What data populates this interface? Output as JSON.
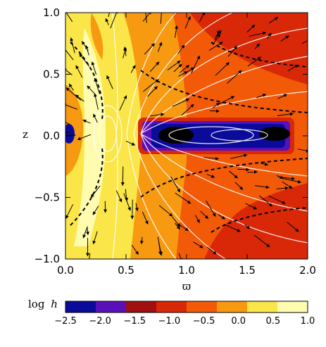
{
  "chart_data": {
    "type": "heatmap",
    "title": "",
    "xlabel": "ϖ",
    "ylabel": "z",
    "xlim": [
      0.0,
      2.0
    ],
    "ylim": [
      -1.0,
      1.0
    ],
    "xticks": [
      "0.0",
      "0.5",
      "1.0",
      "1.5",
      "2.0"
    ],
    "yticks": [
      "1.0",
      "0.5",
      "0.0",
      "−0.5",
      "−1.0"
    ],
    "xtick_values": [
      0.0,
      0.5,
      1.0,
      1.5,
      2.0
    ],
    "ytick_values": [
      1.0,
      0.5,
      0.0,
      -0.5,
      -1.0
    ],
    "colorbar": {
      "label_prefix": "log",
      "label_var": "h",
      "levels": [
        -2.5,
        -2.0,
        -1.5,
        -1.0,
        -0.5,
        0.0,
        0.5,
        1.0
      ],
      "tick_labels": [
        "−2.5",
        "−2.0",
        "−1.5",
        "−1.0",
        "−0.5",
        "0.0",
        "0.5",
        "1.0"
      ],
      "colors": [
        "#0b0b9a",
        "#5a10b8",
        "#a01010",
        "#d82808",
        "#f25a08",
        "#f79a12",
        "#fbe64a",
        "#fffcb0"
      ]
    },
    "overlays": {
      "contours": "white field lines",
      "vectors": "black velocity arrows",
      "dashed": "black dashed contours",
      "torus_box": {
        "x": [
          0.6,
          1.9
        ],
        "z": [
          -0.12,
          0.12
        ]
      }
    }
  }
}
